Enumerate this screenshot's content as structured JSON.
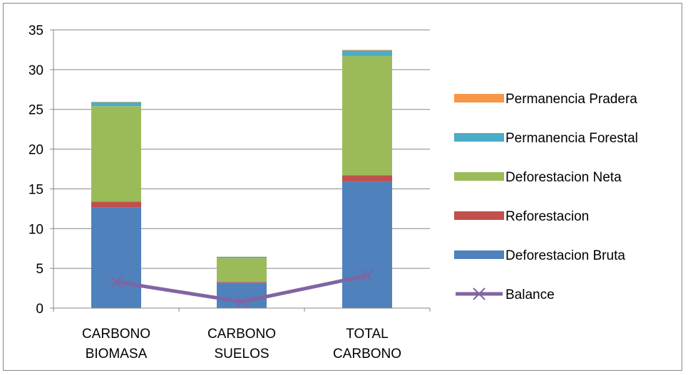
{
  "chart_data": {
    "type": "bar",
    "stacked": true,
    "categories": [
      [
        "CARBONO",
        "BIOMASA"
      ],
      [
        "CARBONO",
        "SUELOS"
      ],
      [
        "TOTAL",
        "CARBONO"
      ]
    ],
    "series": [
      {
        "name": "Deforestacion Bruta",
        "type": "bar",
        "color": "#4F81BD",
        "values": [
          12.7,
          3.2,
          15.9
        ]
      },
      {
        "name": "Reforestacion",
        "type": "bar",
        "color": "#C0504D",
        "values": [
          0.7,
          0.1,
          0.8
        ]
      },
      {
        "name": "Deforestacion Neta",
        "type": "bar",
        "color": "#9BBB59",
        "values": [
          12.0,
          3.0,
          15.0
        ]
      },
      {
        "name": "Permanencia Forestal",
        "type": "bar",
        "color": "#4BACC6",
        "values": [
          0.5,
          0.15,
          0.7
        ]
      },
      {
        "name": "Permanencia Pradera",
        "type": "bar",
        "color": "#F79646",
        "values": [
          0.05,
          0.02,
          0.08
        ]
      },
      {
        "name": "Balance",
        "type": "line",
        "color": "#8064A2",
        "marker": "x",
        "values": [
          3.3,
          0.8,
          4.1
        ]
      }
    ],
    "ylim": [
      0,
      35
    ],
    "yticks": [
      0,
      5,
      10,
      15,
      20,
      25,
      30,
      35
    ],
    "grid": true,
    "legend_position": "right",
    "legend_order": [
      "Permanencia Pradera",
      "Permanencia Forestal",
      "Deforestacion Neta",
      "Reforestacion",
      "Deforestacion Bruta",
      "Balance"
    ]
  }
}
